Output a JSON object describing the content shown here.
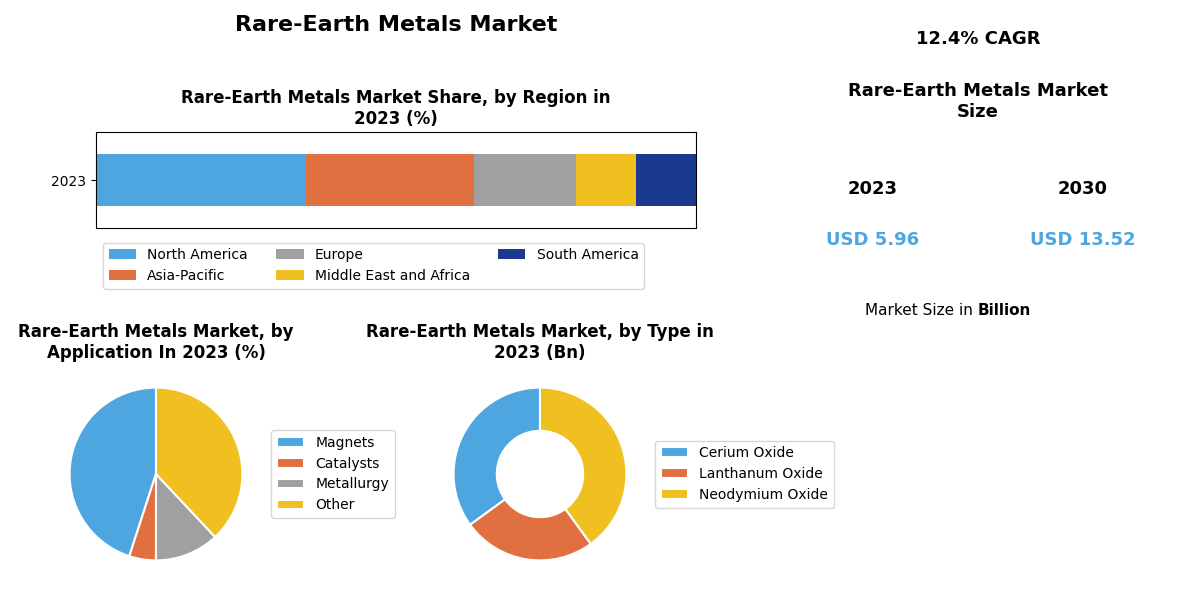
{
  "title": "Rare-Earth Metals Market",
  "chart_data": [
    {
      "type": "bar",
      "orientation": "horizontal",
      "stacked": true,
      "title": "Rare-Earth Metals Market Share, by Region in\n2023 (%)",
      "categories": [
        "2023"
      ],
      "series": [
        {
          "name": "North America",
          "color": "#4da6e0",
          "values": [
            35
          ]
        },
        {
          "name": "Asia-Pacific",
          "color": "#e07040",
          "values": [
            28
          ]
        },
        {
          "name": "Europe",
          "color": "#a0a0a0",
          "values": [
            17
          ]
        },
        {
          "name": "Middle East and Africa",
          "color": "#f0c020",
          "values": [
            10
          ]
        },
        {
          "name": "South America",
          "color": "#1a3a8f",
          "values": [
            10
          ]
        }
      ],
      "xlim": [
        0,
        100
      ],
      "tick_labels": "y",
      "legend": "upper left"
    },
    {
      "type": "text",
      "subtitle": "12.4% CAGR",
      "title": "Rare-Earth Metals Market\nSize",
      "categories": [
        "2023",
        "2030"
      ],
      "values": [
        5.96,
        13.52
      ],
      "value_labels": [
        "USD 5.96",
        "USD 13.52"
      ],
      "color": "#4da6e0",
      "annotations": [
        "Market Size in ",
        "Billion"
      ]
    },
    {
      "type": "pie",
      "title": "Rare-Earth Metals Market, by\nApplication In 2023 (%)",
      "categories": [
        "Magnets",
        "Catalysts",
        "Metallurgy",
        "Other"
      ],
      "values": [
        45,
        5,
        12,
        38
      ],
      "colors": [
        "#4da6e0",
        "#e07040",
        "#a0a0a0",
        "#f0c020"
      ],
      "legend": "center left"
    },
    {
      "type": "donut",
      "title": "Rare-Earth Metals Market, by Type in\n2023 (Bn)",
      "categories": [
        "Cerium Oxide",
        "Lanthanum Oxide",
        "Neodymium Oxide"
      ],
      "values": [
        35,
        25,
        40
      ],
      "colors": [
        "#4da6e0",
        "#e07040",
        "#f0c020"
      ],
      "legend": "center left"
    }
  ]
}
